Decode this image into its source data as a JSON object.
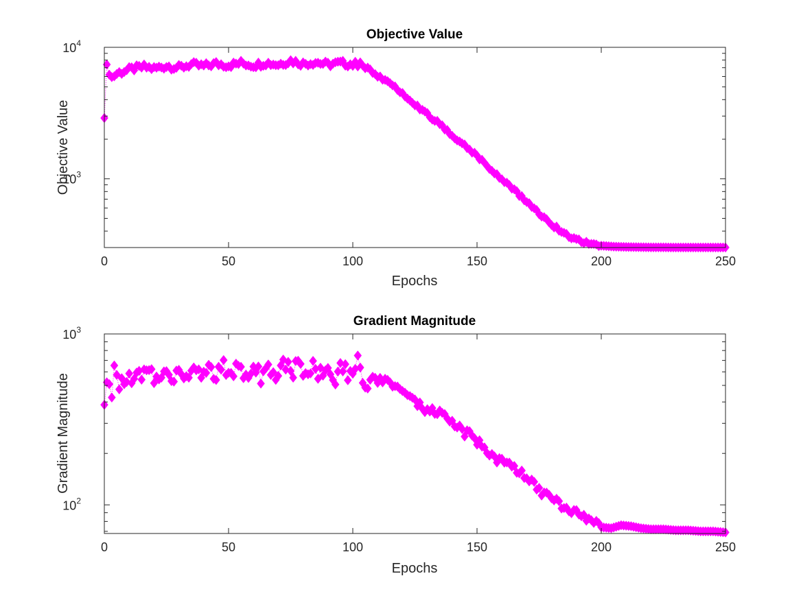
{
  "chart_data": [
    {
      "type": "scatter",
      "title": "Objective Value",
      "xlabel": "Epochs",
      "ylabel": "Objective Value",
      "yscale": "log",
      "xlim": [
        0,
        250
      ],
      "ylim": [
        300,
        10000
      ],
      "xticks": [
        0,
        50,
        100,
        150,
        200,
        250
      ],
      "xtick_labels": [
        "0",
        "50",
        "100",
        "150",
        "200",
        "250"
      ],
      "yticks": [
        1000,
        10000
      ],
      "ytick_labels": [
        {
          "base": "10",
          "exp": "3"
        },
        {
          "base": "10",
          "exp": "4"
        }
      ],
      "marker": "diamond",
      "color": "#ff00ff",
      "series": [
        {
          "name": "objective",
          "description": "sampled from the plotted curve: starts ~2900 at epoch 0, plateaus ~6500-8000 until epoch ~103, decays log-linearly to ~320 by epoch ~200, then flat at ~300 to epoch 250",
          "x": [
            0,
            1,
            3,
            5,
            8,
            12,
            16,
            20,
            25,
            30,
            35,
            40,
            45,
            50,
            55,
            60,
            65,
            70,
            75,
            80,
            85,
            90,
            95,
            100,
            103,
            106,
            110,
            115,
            120,
            125,
            130,
            135,
            140,
            145,
            150,
            155,
            160,
            165,
            170,
            175,
            180,
            185,
            190,
            195,
            200,
            205,
            210,
            215,
            220,
            225,
            230,
            235,
            240,
            245,
            250
          ],
          "y": [
            2900,
            7100,
            5900,
            6300,
            6600,
            6900,
            7100,
            6900,
            7200,
            7000,
            7400,
            7200,
            7500,
            7300,
            7600,
            7300,
            7600,
            7400,
            7900,
            7500,
            7700,
            7400,
            7600,
            7400,
            7500,
            6900,
            6100,
            5300,
            4500,
            3700,
            3100,
            2600,
            2150,
            1800,
            1500,
            1200,
            1000,
            820,
            670,
            550,
            450,
            385,
            345,
            322,
            310,
            305,
            303,
            302,
            301,
            301,
            300,
            300,
            300,
            300,
            300
          ]
        }
      ]
    },
    {
      "type": "scatter",
      "title": "Gradient Magnitude",
      "xlabel": "Epochs",
      "ylabel": "Gradient Magnitude",
      "yscale": "log",
      "xlim": [
        0,
        250
      ],
      "ylim": [
        68,
        1000
      ],
      "xticks": [
        0,
        50,
        100,
        150,
        200,
        250
      ],
      "xtick_labels": [
        "0",
        "50",
        "100",
        "150",
        "200",
        "250"
      ],
      "yticks": [
        100,
        1000
      ],
      "ytick_labels": [
        {
          "base": "10",
          "exp": "2"
        },
        {
          "base": "10",
          "exp": "3"
        }
      ],
      "marker": "diamond",
      "color": "#ff00ff",
      "series": [
        {
          "name": "gradient",
          "description": "sampled from the plotted curve: ~380-650 plateau with scatter until epoch ~105, decays to ~72 by epoch ~200, small bump ~75 at 210, then ~70 flat to epoch 250",
          "x": [
            0,
            1,
            3,
            4,
            6,
            9,
            12,
            15,
            18,
            21,
            24,
            27,
            30,
            33,
            36,
            39,
            42,
            45,
            48,
            51,
            54,
            57,
            60,
            63,
            66,
            69,
            72,
            75,
            78,
            81,
            84,
            87,
            90,
            93,
            96,
            99,
            102,
            105,
            108,
            111,
            114,
            117,
            120,
            124,
            128,
            132,
            136,
            140,
            144,
            148,
            152,
            156,
            160,
            164,
            168,
            172,
            176,
            180,
            184,
            188,
            192,
            196,
            200,
            204,
            208,
            212,
            216,
            220,
            225,
            230,
            235,
            240,
            245,
            250
          ],
          "y": [
            385,
            510,
            420,
            640,
            520,
            540,
            580,
            560,
            600,
            540,
            620,
            560,
            640,
            540,
            650,
            600,
            620,
            580,
            640,
            600,
            660,
            580,
            690,
            560,
            640,
            600,
            670,
            600,
            660,
            580,
            650,
            590,
            670,
            560,
            640,
            580,
            690,
            530,
            520,
            540,
            510,
            480,
            450,
            400,
            370,
            360,
            330,
            300,
            270,
            250,
            220,
            195,
            180,
            165,
            150,
            135,
            120,
            110,
            100,
            92,
            85,
            80,
            74,
            73,
            76,
            75,
            73,
            72,
            72,
            71,
            71,
            70,
            70,
            69
          ]
        }
      ]
    }
  ]
}
